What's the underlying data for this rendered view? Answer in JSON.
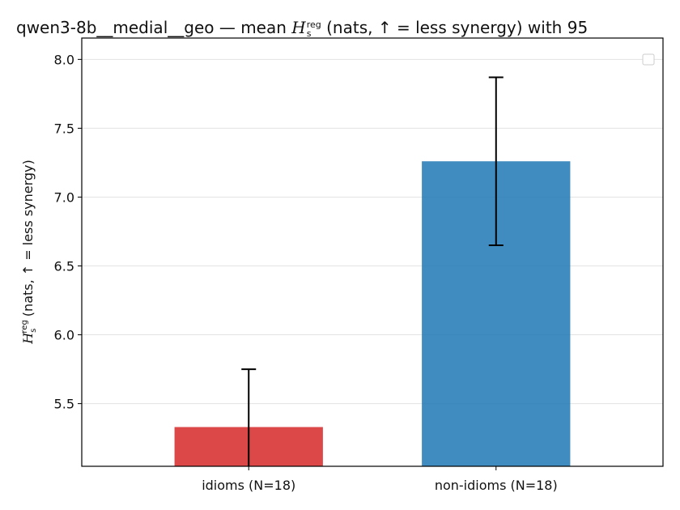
{
  "chart_data": {
    "type": "bar",
    "title_prefix": "qwen3-8b__medial__geo — mean",
    "title_symbol": "H",
    "title_sub": "s",
    "title_sup": "reg",
    "title_suffix": "(nats, ↑ = less synergy) with 95",
    "ylabel_symbol": "H",
    "ylabel_sub": "s",
    "ylabel_sup": "reg",
    "ylabel_suffix": "(nats, ↑ = less synergy)",
    "categories": [
      "idioms (N=18)",
      "non-idioms (N=18)"
    ],
    "values": [
      5.33,
      7.26
    ],
    "ci_low": [
      5.02,
      6.65
    ],
    "ci_high": [
      5.75,
      7.87
    ],
    "colors": [
      "#d62728",
      "#1f77b4"
    ],
    "ylim": [
      5.045,
      8.155
    ],
    "yticks": [
      5.5,
      6.0,
      6.5,
      7.0,
      7.5,
      8.0
    ],
    "ytick_labels": [
      "5.5",
      "6.0",
      "6.5",
      "7.0",
      "7.5",
      "8.0"
    ],
    "grid": true,
    "legend": "top-right (empty)"
  }
}
